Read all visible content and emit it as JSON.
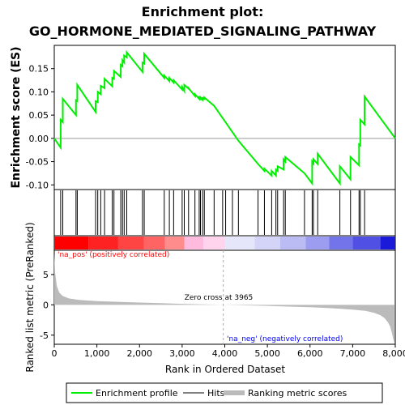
{
  "chart_data": {
    "type": "line",
    "title_line1": "Enrichment plot:",
    "title_line2": "GO_HORMONE_MEDIATED_SIGNALING_PATHWAY",
    "xlabel": "Rank in Ordered Dataset",
    "ylabel_top": "Enrichment score (ES)",
    "ylabel_bottom": "Ranked list metric (PreRanked)",
    "xlim": [
      0,
      8000
    ],
    "x_ticks": [
      0,
      1000,
      2000,
      3000,
      4000,
      5000,
      6000,
      7000,
      8000
    ],
    "es_ylim": [
      -0.11,
      0.2
    ],
    "es_ticks": [
      -0.1,
      -0.05,
      0.0,
      0.05,
      0.1,
      0.15
    ],
    "metric_ylim": [
      -6.5,
      9.0
    ],
    "metric_ticks": [
      -5,
      0,
      5
    ],
    "zero_cross_rank": 3965,
    "zero_cross_label": "Zero cross at 3965",
    "pos_label": "'na_pos' (positively correlated)",
    "neg_label": "'na_neg' (negatively correlated)",
    "legend": [
      "Enrichment profile",
      "Hits",
      "Ranking metric scores"
    ],
    "colors": {
      "profile": "#00ee00",
      "hits": "#000000",
      "metric": "#bbbbbb",
      "pos_text": "#ff0000",
      "neg_text": "#0000ff"
    },
    "hits": [
      150,
      200,
      510,
      540,
      970,
      1020,
      1090,
      1180,
      1360,
      1400,
      1560,
      1600,
      1640,
      1700,
      2070,
      2110,
      2580,
      2700,
      2800,
      3000,
      3050,
      3150,
      3300,
      3400,
      3430,
      3480,
      3520,
      3750,
      3950,
      4020,
      4180,
      4320,
      4780,
      4930,
      5100,
      5200,
      5240,
      5380,
      5420,
      5870,
      6050,
      6080,
      6180,
      6700,
      6950,
      7150,
      7180,
      7280
    ],
    "es_profile": [
      [
        0,
        0.0
      ],
      [
        150,
        -0.02
      ],
      [
        150,
        0.04
      ],
      [
        200,
        0.035
      ],
      [
        200,
        0.085
      ],
      [
        510,
        0.05
      ],
      [
        510,
        0.082
      ],
      [
        540,
        0.08
      ],
      [
        540,
        0.115
      ],
      [
        970,
        0.057
      ],
      [
        970,
        0.08
      ],
      [
        1020,
        0.078
      ],
      [
        1020,
        0.1
      ],
      [
        1090,
        0.095
      ],
      [
        1090,
        0.113
      ],
      [
        1180,
        0.108
      ],
      [
        1180,
        0.128
      ],
      [
        1360,
        0.112
      ],
      [
        1360,
        0.13
      ],
      [
        1400,
        0.128
      ],
      [
        1400,
        0.145
      ],
      [
        1560,
        0.132
      ],
      [
        1560,
        0.158
      ],
      [
        1600,
        0.155
      ],
      [
        1600,
        0.168
      ],
      [
        1640,
        0.163
      ],
      [
        1640,
        0.178
      ],
      [
        1700,
        0.174
      ],
      [
        1700,
        0.185
      ],
      [
        2070,
        0.143
      ],
      [
        2070,
        0.163
      ],
      [
        2110,
        0.161
      ],
      [
        2110,
        0.182
      ],
      [
        2580,
        0.13
      ],
      [
        2580,
        0.135
      ],
      [
        2700,
        0.123
      ],
      [
        2700,
        0.13
      ],
      [
        2800,
        0.12
      ],
      [
        2800,
        0.125
      ],
      [
        3000,
        0.105
      ],
      [
        3000,
        0.11
      ],
      [
        3050,
        0.102
      ],
      [
        3050,
        0.115
      ],
      [
        3150,
        0.107
      ],
      [
        3150,
        0.108
      ],
      [
        3300,
        0.091
      ],
      [
        3300,
        0.095
      ],
      [
        3400,
        0.085
      ],
      [
        3400,
        0.088
      ],
      [
        3430,
        0.085
      ],
      [
        3430,
        0.088
      ],
      [
        3480,
        0.083
      ],
      [
        3480,
        0.087
      ],
      [
        3520,
        0.085
      ],
      [
        3520,
        0.088
      ],
      [
        3750,
        0.07
      ],
      [
        4320,
        -0.005
      ],
      [
        4780,
        -0.055
      ],
      [
        4930,
        -0.07
      ],
      [
        4930,
        -0.065
      ],
      [
        5100,
        -0.08
      ],
      [
        5100,
        -0.07
      ],
      [
        5200,
        -0.08
      ],
      [
        5200,
        -0.067
      ],
      [
        5240,
        -0.07
      ],
      [
        5240,
        -0.06
      ],
      [
        5380,
        -0.067
      ],
      [
        5380,
        -0.045
      ],
      [
        5420,
        -0.05
      ],
      [
        5420,
        -0.04
      ],
      [
        5870,
        -0.075
      ],
      [
        6050,
        -0.097
      ],
      [
        6050,
        -0.05
      ],
      [
        6080,
        -0.054
      ],
      [
        6080,
        -0.045
      ],
      [
        6180,
        -0.055
      ],
      [
        6180,
        -0.033
      ],
      [
        6700,
        -0.097
      ],
      [
        6700,
        -0.06
      ],
      [
        6950,
        -0.088
      ],
      [
        6950,
        -0.04
      ],
      [
        7150,
        -0.058
      ],
      [
        7150,
        -0.013
      ],
      [
        7180,
        -0.015
      ],
      [
        7180,
        0.04
      ],
      [
        7280,
        0.03
      ],
      [
        7280,
        0.09
      ],
      [
        8000,
        0.0
      ]
    ],
    "metric_curve": [
      [
        0,
        8.5
      ],
      [
        20,
        5.2
      ],
      [
        60,
        3.1
      ],
      [
        120,
        2.0
      ],
      [
        200,
        1.45
      ],
      [
        350,
        1.05
      ],
      [
        600,
        0.8
      ],
      [
        1000,
        0.62
      ],
      [
        1500,
        0.5
      ],
      [
        2000,
        0.38
      ],
      [
        2500,
        0.27
      ],
      [
        3000,
        0.17
      ],
      [
        3500,
        0.07
      ],
      [
        3965,
        0.0
      ],
      [
        4500,
        -0.08
      ],
      [
        5000,
        -0.17
      ],
      [
        5500,
        -0.28
      ],
      [
        6000,
        -0.4
      ],
      [
        6500,
        -0.55
      ],
      [
        7000,
        -0.78
      ],
      [
        7300,
        -1.0
      ],
      [
        7500,
        -1.3
      ],
      [
        7650,
        -1.7
      ],
      [
        7750,
        -2.2
      ],
      [
        7830,
        -2.9
      ],
      [
        7880,
        -3.6
      ],
      [
        7920,
        -4.6
      ],
      [
        7950,
        -5.6
      ],
      [
        7980,
        -6.3
      ]
    ],
    "heat_segments": [
      {
        "from": 0,
        "to": 800,
        "color": "#ff0000"
      },
      {
        "from": 800,
        "to": 1500,
        "color": "#ff2222"
      },
      {
        "from": 1500,
        "to": 2100,
        "color": "#ff4444"
      },
      {
        "from": 2100,
        "to": 2600,
        "color": "#ff6464"
      },
      {
        "from": 2600,
        "to": 3050,
        "color": "#ff8c8c"
      },
      {
        "from": 3050,
        "to": 3500,
        "color": "#ffbbdd"
      },
      {
        "from": 3500,
        "to": 4000,
        "color": "#ffd4ec"
      },
      {
        "from": 4000,
        "to": 4700,
        "color": "#e6e6fa"
      },
      {
        "from": 4700,
        "to": 5300,
        "color": "#d4d4f8"
      },
      {
        "from": 5300,
        "to": 5900,
        "color": "#bcbcf4"
      },
      {
        "from": 5900,
        "to": 6450,
        "color": "#9c9cf0"
      },
      {
        "from": 6450,
        "to": 7000,
        "color": "#7474ea"
      },
      {
        "from": 7000,
        "to": 7650,
        "color": "#5050e4"
      },
      {
        "from": 7650,
        "to": 8000,
        "color": "#1a1ad8"
      }
    ]
  }
}
